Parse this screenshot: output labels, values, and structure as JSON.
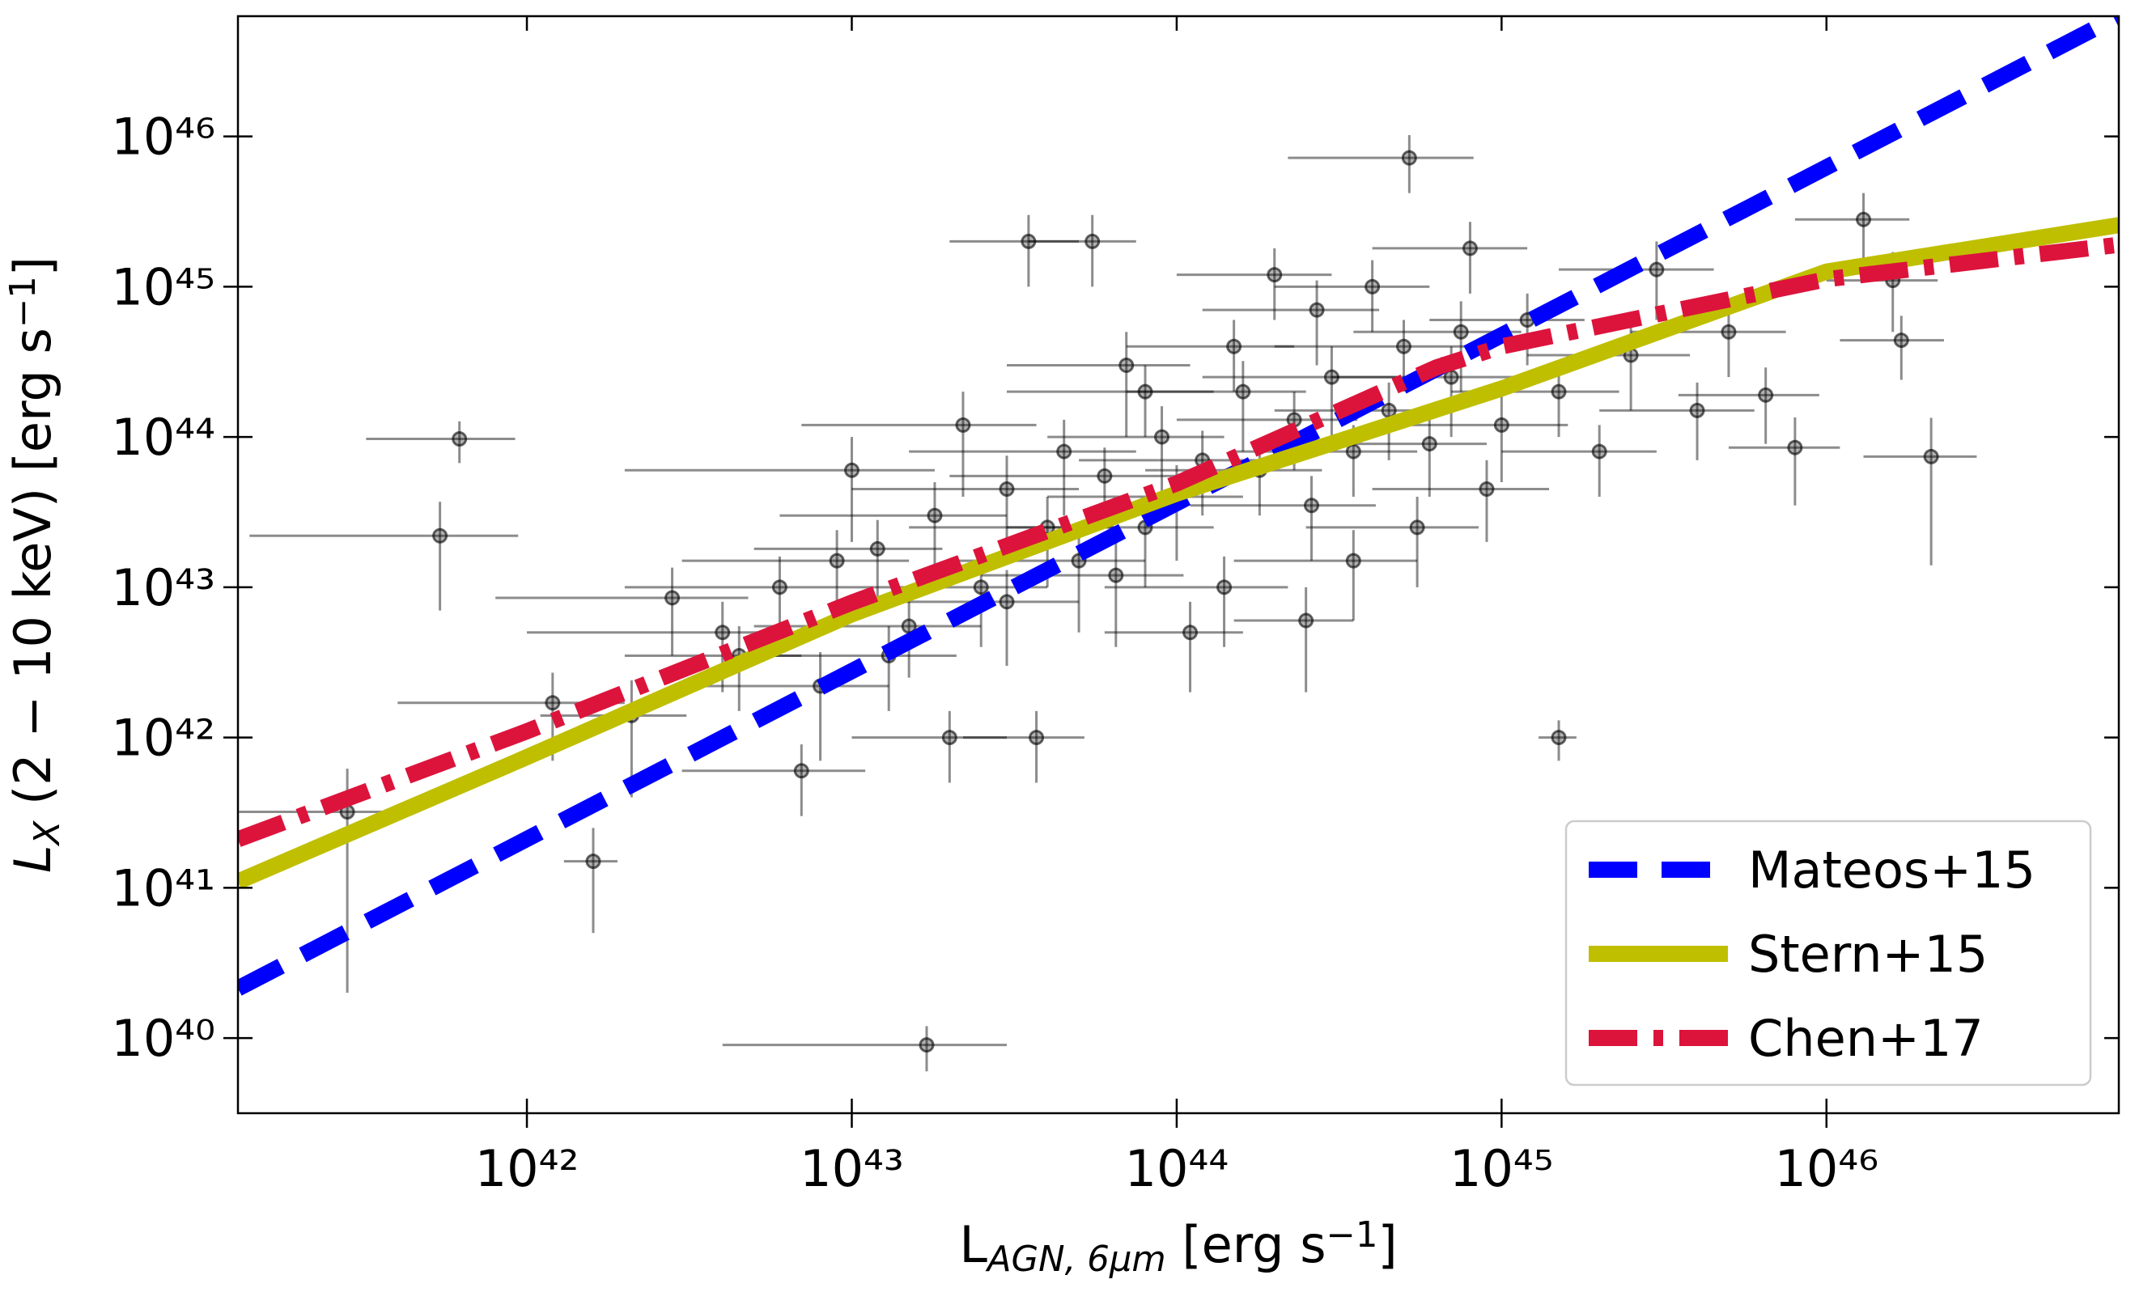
{
  "chart_data": {
    "type": "errorbar-scatter",
    "xlabel": [
      {
        "text": "L"
      },
      {
        "text": "AGN, 6μm",
        "style": "sub"
      },
      {
        "text": " [erg s"
      },
      {
        "text": "−1",
        "style": "sup"
      },
      {
        "text": "]"
      }
    ],
    "ylabel": [
      {
        "text": "L",
        "style": "italic"
      },
      {
        "text": "X",
        "style": "sub"
      },
      {
        "text": " (2 − 10 keV) [erg s"
      },
      {
        "text": "−1",
        "style": "sup"
      },
      {
        "text": "]"
      }
    ],
    "xscale": "log",
    "yscale": "log",
    "xlim": [
      1.29e+41,
      7.94e+46
    ],
    "ylim": [
      3.16e+39,
      6.31e+46
    ],
    "xticks": [
      {
        "value": 1e+42,
        "label": "10⁴²"
      },
      {
        "value": 1e+43,
        "label": "10⁴³"
      },
      {
        "value": 1e+44,
        "label": "10⁴⁴"
      },
      {
        "value": 1e+45,
        "label": "10⁴⁵"
      },
      {
        "value": 1e+46,
        "label": "10⁴⁶"
      }
    ],
    "yticks": [
      {
        "value": 1e+40,
        "label": "10⁴⁰"
      },
      {
        "value": 1e+41,
        "label": "10⁴¹"
      },
      {
        "value": 1e+42,
        "label": "10⁴²"
      },
      {
        "value": 1e+43,
        "label": "10⁴³"
      },
      {
        "value": 1e+44,
        "label": "10⁴⁴"
      },
      {
        "value": 1e+45,
        "label": "10⁴⁵"
      },
      {
        "value": 1e+46,
        "label": "10⁴⁶"
      }
    ],
    "grid": false,
    "legend": "lower right",
    "points": {
      "color": "#000000",
      "x": [
        6.2e+41,
        5.4e+41,
        1.6e+42,
        1.7e+43,
        1.5e+45,
        2.1e+46,
        5.2e+44,
        3.7e+43,
        2.8e+41,
        1.2e+42,
        2.1e+42,
        2.8e+42,
        4.5e+42,
        6e+42,
        8e+42,
        1e+43,
        1.2e+43,
        1.5e+43,
        1.8e+43,
        2.2e+43,
        2.5e+43,
        3e+43,
        3.5e+43,
        4e+43,
        4.5e+43,
        5e+43,
        5.5e+43,
        6e+43,
        7e+43,
        8e+43,
        9e+43,
        1e+44,
        1.2e+44,
        1.4e+44,
        1.6e+44,
        1.8e+44,
        2e+44,
        2.3e+44,
        2.6e+44,
        3e+44,
        3.5e+44,
        4e+44,
        4.5e+44,
        5e+44,
        6e+44,
        7e+44,
        8e+44,
        9e+44,
        1e+45,
        1.2e+45,
        1.5e+45,
        2e+45,
        2.5e+45,
        3e+45,
        4e+45,
        5e+45,
        6.5e+45,
        8e+45,
        1.3e+46,
        1.6e+46,
        1.7e+46,
        4e+42,
        7e+42,
        9e+42,
        1.3e+43,
        2e+43,
        3e+43,
        6.5e+43,
        1.1e+44,
        2.5e+44,
        3.5e+44,
        5.5e+44,
        7.5e+44,
        2.7e+44,
        1.5e+44,
        8e+43
      ],
      "values": [
        9.7e+43,
        2.2e+43,
        1.5e+41,
        9e+39,
        1e+42,
        7.4e+43,
        7.2e+45,
        1e+42,
        3.2e+41,
        1.7e+42,
        1.4e+42,
        8.5e+42,
        3.5e+42,
        1e+43,
        2.2e+42,
        6e+43,
        1.8e+43,
        5.5e+42,
        3e+43,
        1.2e+44,
        1e+43,
        4.5e+43,
        2e+45,
        2.5e+43,
        8e+43,
        1.5e+43,
        2e+45,
        5.5e+43,
        3e+44,
        2.5e+43,
        1e+44,
        4e+43,
        7e+43,
        1e+43,
        2e+44,
        6e+43,
        1.2e+45,
        1.3e+44,
        3.5e+43,
        2.5e+44,
        8e+43,
        1e+45,
        1.5e+44,
        4e+44,
        9e+43,
        2.5e+44,
        1.8e+45,
        4.5e+43,
        1.2e+44,
        6e+44,
        2e+44,
        8e+43,
        3.5e+44,
        1.3e+45,
        1.5e+44,
        5e+44,
        1.9e+44,
        8.5e+43,
        2.8e+45,
        1.1e+45,
        4.4e+44,
        5e+42,
        6e+41,
        1.5e+43,
        3.5e+42,
        1e+42,
        8e+42,
        1.2e+43,
        5e+42,
        6e+42,
        1.5e+43,
        2.5e+43,
        5e+44,
        7e+44,
        4e+44,
        2e+44
      ],
      "xerr": [
        3e+41,
        4e+41,
        3e+41,
        1.3e+43,
        2e+44,
        8e+45,
        3e+44,
        1.5e+43,
        1.5e+41,
        8e+41,
        1e+42,
        2e+42,
        2.5e+42,
        4e+42,
        5e+42,
        8e+42,
        7e+42,
        1e+43,
        1.2e+43,
        1.5e+43,
        1.5e+43,
        2e+43,
        1.5e+43,
        2.5e+43,
        3e+43,
        3e+43,
        2e+43,
        4e+43,
        4e+43,
        5e+43,
        5e+43,
        6e+43,
        7e+43,
        8e+43,
        9e+43,
        1e+44,
        1e+44,
        1.3e+44,
        1.5e+44,
        1.8e+44,
        2e+44,
        2e+44,
        2.5e+44,
        3e+44,
        3e+44,
        4e+44,
        4e+44,
        5e+44,
        6e+44,
        6e+44,
        8e+44,
        1e+45,
        1.3e+45,
        1.5e+45,
        2e+45,
        2.5e+45,
        3e+45,
        3e+45,
        5e+45,
        6e+45,
        6e+45,
        3e+42,
        4e+42,
        6e+42,
        8e+42,
        1e+43,
        2e+43,
        4e+43,
        5e+43,
        1e+44,
        2e+44,
        3e+44,
        4e+44,
        1.5e+44,
        8e+43,
        5e+43
      ],
      "yerr": [
        3e+43,
        1.5e+43,
        1e+41,
        3e+39,
        3e+41,
        6e+43,
        3e+45,
        5e+41,
        3e+41,
        1e+42,
        1e+42,
        5e+42,
        2e+42,
        6e+42,
        1.5e+42,
        4e+43,
        1e+43,
        3e+42,
        2e+43,
        8e+43,
        6e+42,
        3e+43,
        1e+45,
        1.5e+43,
        5e+43,
        1e+43,
        1e+45,
        3e+43,
        2e+44,
        1.5e+43,
        6e+43,
        2.5e+43,
        4e+43,
        6e+42,
        1.2e+44,
        3e+43,
        6e+44,
        7e+43,
        2e+43,
        1.5e+44,
        4e+43,
        5e+44,
        8e+43,
        2e+44,
        5e+43,
        1.5e+44,
        9e+44,
        2.5e+43,
        7e+43,
        3e+44,
        1e+44,
        4e+43,
        2e+44,
        7e+44,
        8e+43,
        2.5e+44,
        1e+44,
        5e+43,
        1.4e+45,
        6e+44,
        2e+44,
        3e+42,
        3e+41,
        9e+42,
        2e+42,
        5e+41,
        5e+42,
        8e+42,
        3e+42,
        4e+42,
        9e+42,
        1.5e+43,
        3e+44,
        4e+44,
        2e+44,
        1e+44
      ]
    },
    "series": [
      {
        "name": "Mateos+15",
        "color": "#0000ff",
        "linestyle": "dashed",
        "x": [
          1.29e+41,
          7.94e+46
        ],
        "values": [
          2.14e+40,
          6.31e+46
        ]
      },
      {
        "name": "Stern+15",
        "color": "#bfbf00",
        "linestyle": "solid",
        "x": [
          1.29e+41,
          1e+42,
          1e+43,
          1e+44,
          1e+45,
          1e+46,
          7.94e+46
        ],
        "values": [
          1.1e+41,
          7.4e+41,
          6.6e+42,
          4.2e+43,
          2.1e+44,
          1.26e+45,
          2.57e+45
        ]
      },
      {
        "name": "Chen+17",
        "color": "#dc143c",
        "linestyle": "dashdot",
        "x": [
          1.29e+41,
          1e+42,
          1e+43,
          1e+44,
          6.3e+44,
          1e+45,
          1e+46,
          7.94e+46
        ],
        "values": [
          2.1e+41,
          1.1e+42,
          7.9e+42,
          4.9e+43,
          2.9e+44,
          4e+44,
          1.12e+45,
          1.9e+45
        ]
      }
    ]
  }
}
